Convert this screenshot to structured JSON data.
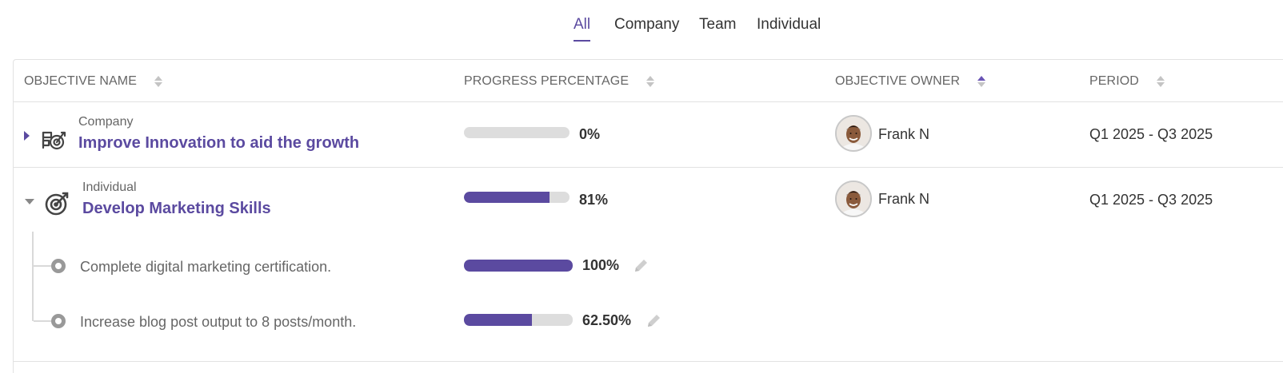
{
  "tabs": [
    {
      "label": "All",
      "active": true
    },
    {
      "label": "Company",
      "active": false
    },
    {
      "label": "Team",
      "active": false
    },
    {
      "label": "Individual",
      "active": false
    }
  ],
  "columns": {
    "name": "OBJECTIVE NAME",
    "progress": "PROGRESS PERCENTAGE",
    "owner": "OBJECTIVE OWNER",
    "period": "PERIOD",
    "owner_sort": "ascending"
  },
  "objectives": [
    {
      "type": "Company",
      "title": "Improve Innovation to aid the growth",
      "progress_value": 0,
      "progress_label": "0%",
      "owner": "Frank N",
      "period": "Q1 2025 - Q3 2025",
      "expanded": false,
      "icon": "roadmap-target-icon"
    },
    {
      "type": "Individual",
      "title": "Develop Marketing Skills",
      "progress_value": 81,
      "progress_label": "81%",
      "owner": "Frank N",
      "period": "Q1 2025 - Q3 2025",
      "expanded": true,
      "icon": "target-icon",
      "key_results": [
        {
          "text": "Complete digital marketing certification.",
          "progress_value": 100,
          "progress_label": "100%"
        },
        {
          "text": "Increase blog post output to 8 posts/month.",
          "progress_value": 62.5,
          "progress_label": "62.50%"
        }
      ]
    }
  ],
  "colors": {
    "accent": "#5b4aa0",
    "track": "#dddddd",
    "border": "#e2e2e2"
  }
}
